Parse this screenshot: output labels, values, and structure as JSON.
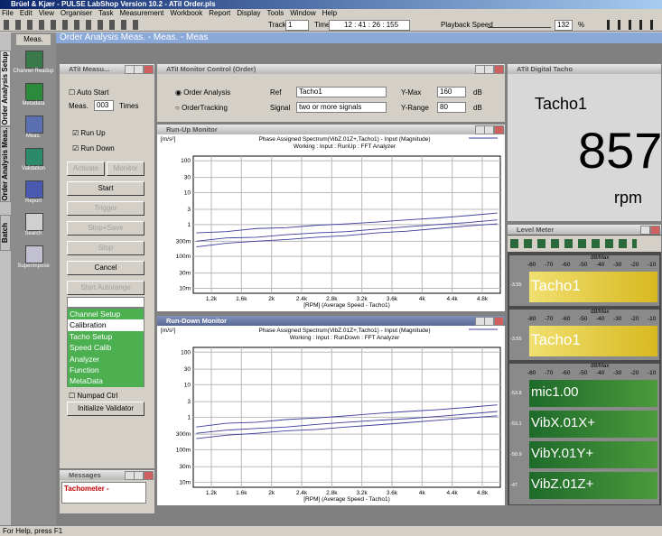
{
  "app_title": "Brüel & Kjær - PULSE LabShop Version 10.2 - ATiI Order.pls",
  "menu": [
    "File",
    "Edit",
    "View",
    "Organiser",
    "Task",
    "Measurement",
    "Workbook",
    "Report",
    "Display",
    "Tools",
    "Window",
    "Help"
  ],
  "toolbar": {
    "track_label": "Track",
    "track_value": "1",
    "time_label": "Time",
    "time_value": "12 : 41 : 26 : 155",
    "playback_label": "Playback Speed",
    "playback_value": "132",
    "playback_unit": "%"
  },
  "side_tabs": [
    "Order Analysis Setup",
    "Order Analysis Meas.",
    "Batch"
  ],
  "nav": {
    "tab": "Meas.",
    "items": [
      "Channel Readup",
      "Metadata",
      "Meas.",
      "Validation",
      "Report",
      "Search",
      "Superimpose"
    ]
  },
  "header": "Order Analysis Meas. - Meas. - Meas",
  "measure_window": {
    "title": "ATiI Measu...",
    "auto_start": "Auto Start",
    "meas_label": "Meas.",
    "meas_value": "003",
    "times": "Times",
    "run_up": "Run Up",
    "run_down": "Run Down",
    "buttons": [
      "Activate",
      "Monitor",
      "Start",
      "Trigger",
      "Stop+Save",
      "Stop",
      "Cancel",
      "Start Autorange"
    ],
    "list": [
      "Channel Setup",
      "Calibration",
      "Tacho Setup",
      "Speed Calib",
      "Analyzer",
      "Function",
      "MetaData"
    ],
    "numpad": "Numpad Ctrl",
    "init": "Initialize Validator"
  },
  "monitor_control": {
    "title": "ATiI Monitor Control (Order)",
    "mode_1": "Order Analysis",
    "mode_2": "OrderTracking",
    "ref_label": "Ref",
    "ref_value": "Tacho1",
    "signal_label": "Signal",
    "signal_value": "two or more signals",
    "ymax_label": "Y-Max",
    "ymax_value": "160",
    "yrange_label": "Y-Range",
    "yrange_value": "80",
    "unit_1": "dB",
    "unit_2": "dB"
  },
  "run_up_monitor": {
    "title": "Run-Up Monitor",
    "plot": {
      "type": "line",
      "y_unit": "[m/s²]",
      "title": "Phase Assigned Spectrum(VibZ.01Z+,Tacho1) - Input (Magnitude)",
      "subtitle": "Working : Input : RunUp : FFT Analyzer",
      "x_label": "[RPM] (Average Speed - Tacho1)",
      "x": [
        1000,
        1400,
        1800,
        2200,
        2600,
        3000,
        3400,
        3800,
        4200,
        4600,
        5000
      ],
      "series": [
        {
          "color": "#3c3c9c",
          "values": [
            0.55,
            0.6,
            0.75,
            0.8,
            0.95,
            1.05,
            1.2,
            1.4,
            1.6,
            1.9,
            2.3
          ]
        },
        {
          "color": "#3c3c9c",
          "values": [
            0.3,
            0.38,
            0.4,
            0.48,
            0.55,
            0.6,
            0.72,
            0.85,
            1.0,
            1.15,
            1.4
          ]
        },
        {
          "color": "#3c3c9c",
          "values": [
            0.2,
            0.26,
            0.3,
            0.34,
            0.4,
            0.45,
            0.55,
            0.62,
            0.75,
            0.9,
            1.05
          ]
        }
      ],
      "xlim": [
        960,
        5040
      ],
      "ylim": [
        0.007,
        140
      ],
      "log_y": true,
      "grid": true,
      "xticks": [
        {
          "value": 1200,
          "label": "1.2k"
        },
        {
          "value": 1600,
          "label": "1.6k"
        },
        {
          "value": 2000,
          "label": "2k"
        },
        {
          "value": 2400,
          "label": "2.4k"
        },
        {
          "value": 2800,
          "label": "2.8k"
        },
        {
          "value": 3200,
          "label": "3.2k"
        },
        {
          "value": 3600,
          "label": "3.6k"
        },
        {
          "value": 4000,
          "label": "4k"
        },
        {
          "value": 4400,
          "label": "4.4k"
        },
        {
          "value": 4800,
          "label": "4.8k"
        }
      ],
      "yticks": [
        100,
        30,
        10,
        3,
        1,
        {
          "value": 0.3,
          "label": "300m"
        },
        {
          "value": 0.1,
          "label": "100m"
        },
        {
          "value": 0.03,
          "label": "30m"
        },
        {
          "value": 0.01,
          "label": "10m"
        }
      ]
    }
  },
  "run_down_monitor": {
    "title": "Run-Down Monitor",
    "plot": {
      "type": "line",
      "y_unit": "[m/s²]",
      "title": "Phase Assigned Spectrum(VibZ.01Z+,Tacho1) - Input (Magnitude)",
      "subtitle": "Working : Input : RunDown : FFT Analyzer",
      "x_label": "[RPM] (Average Speed - Tacho1)",
      "x": [
        1000,
        1400,
        1800,
        2200,
        2600,
        3000,
        3400,
        3800,
        4200,
        4600,
        5000
      ],
      "series": [
        {
          "color": "#3c3c9c",
          "values": [
            0.5,
            0.65,
            0.7,
            0.85,
            0.95,
            1.1,
            1.3,
            1.5,
            1.7,
            2.0,
            2.4
          ]
        },
        {
          "color": "#3c3c9c",
          "values": [
            0.32,
            0.4,
            0.45,
            0.5,
            0.6,
            0.7,
            0.8,
            0.9,
            1.05,
            1.25,
            1.5
          ]
        },
        {
          "color": "#3c3c9c",
          "values": [
            0.22,
            0.28,
            0.32,
            0.38,
            0.42,
            0.5,
            0.58,
            0.68,
            0.8,
            0.95,
            1.1
          ]
        }
      ],
      "xlim": [
        960,
        5040
      ],
      "ylim": [
        0.007,
        140
      ],
      "log_y": true,
      "grid": true,
      "xticks": [
        {
          "value": 1200,
          "label": "1.2k"
        },
        {
          "value": 1600,
          "label": "1.6k"
        },
        {
          "value": 2000,
          "label": "2k"
        },
        {
          "value": 2400,
          "label": "2.4k"
        },
        {
          "value": 2800,
          "label": "2.8k"
        },
        {
          "value": 3200,
          "label": "3.2k"
        },
        {
          "value": 3600,
          "label": "3.6k"
        },
        {
          "value": 4000,
          "label": "4k"
        },
        {
          "value": 4400,
          "label": "4.4k"
        },
        {
          "value": 4800,
          "label": "4.8k"
        }
      ],
      "yticks": [
        100,
        30,
        10,
        3,
        1,
        {
          "value": 0.3,
          "label": "300m"
        },
        {
          "value": 0.1,
          "label": "100m"
        },
        {
          "value": 0.03,
          "label": "30m"
        },
        {
          "value": 0.01,
          "label": "10m"
        }
      ]
    }
  },
  "digital_tacho": {
    "title": "ATiI Digital Tacho",
    "channel": "Tacho1",
    "value": "857",
    "unit": "rpm"
  },
  "level_meter": {
    "title": "Level Meter",
    "scale_unit": "dB/Max",
    "scale": [
      "-80",
      "-70",
      "-60",
      "-50",
      "-40",
      "-30",
      "-20",
      "-10"
    ],
    "channels": [
      {
        "name": "Tacho1",
        "level": "-3.55"
      },
      {
        "name": "Tacho1",
        "level": "-3.55"
      },
      {
        "name": "mic1.00",
        "level": "-53.8"
      },
      {
        "name": "VibX.01X+",
        "level": "-53.1"
      },
      {
        "name": "VibY.01Y+",
        "level": "-50.9"
      },
      {
        "name": "VibZ.01Z+",
        "level": "-47"
      }
    ]
  },
  "messages": {
    "title": "Messages",
    "text": "Tachometer -"
  },
  "status": "For Help, press F1"
}
